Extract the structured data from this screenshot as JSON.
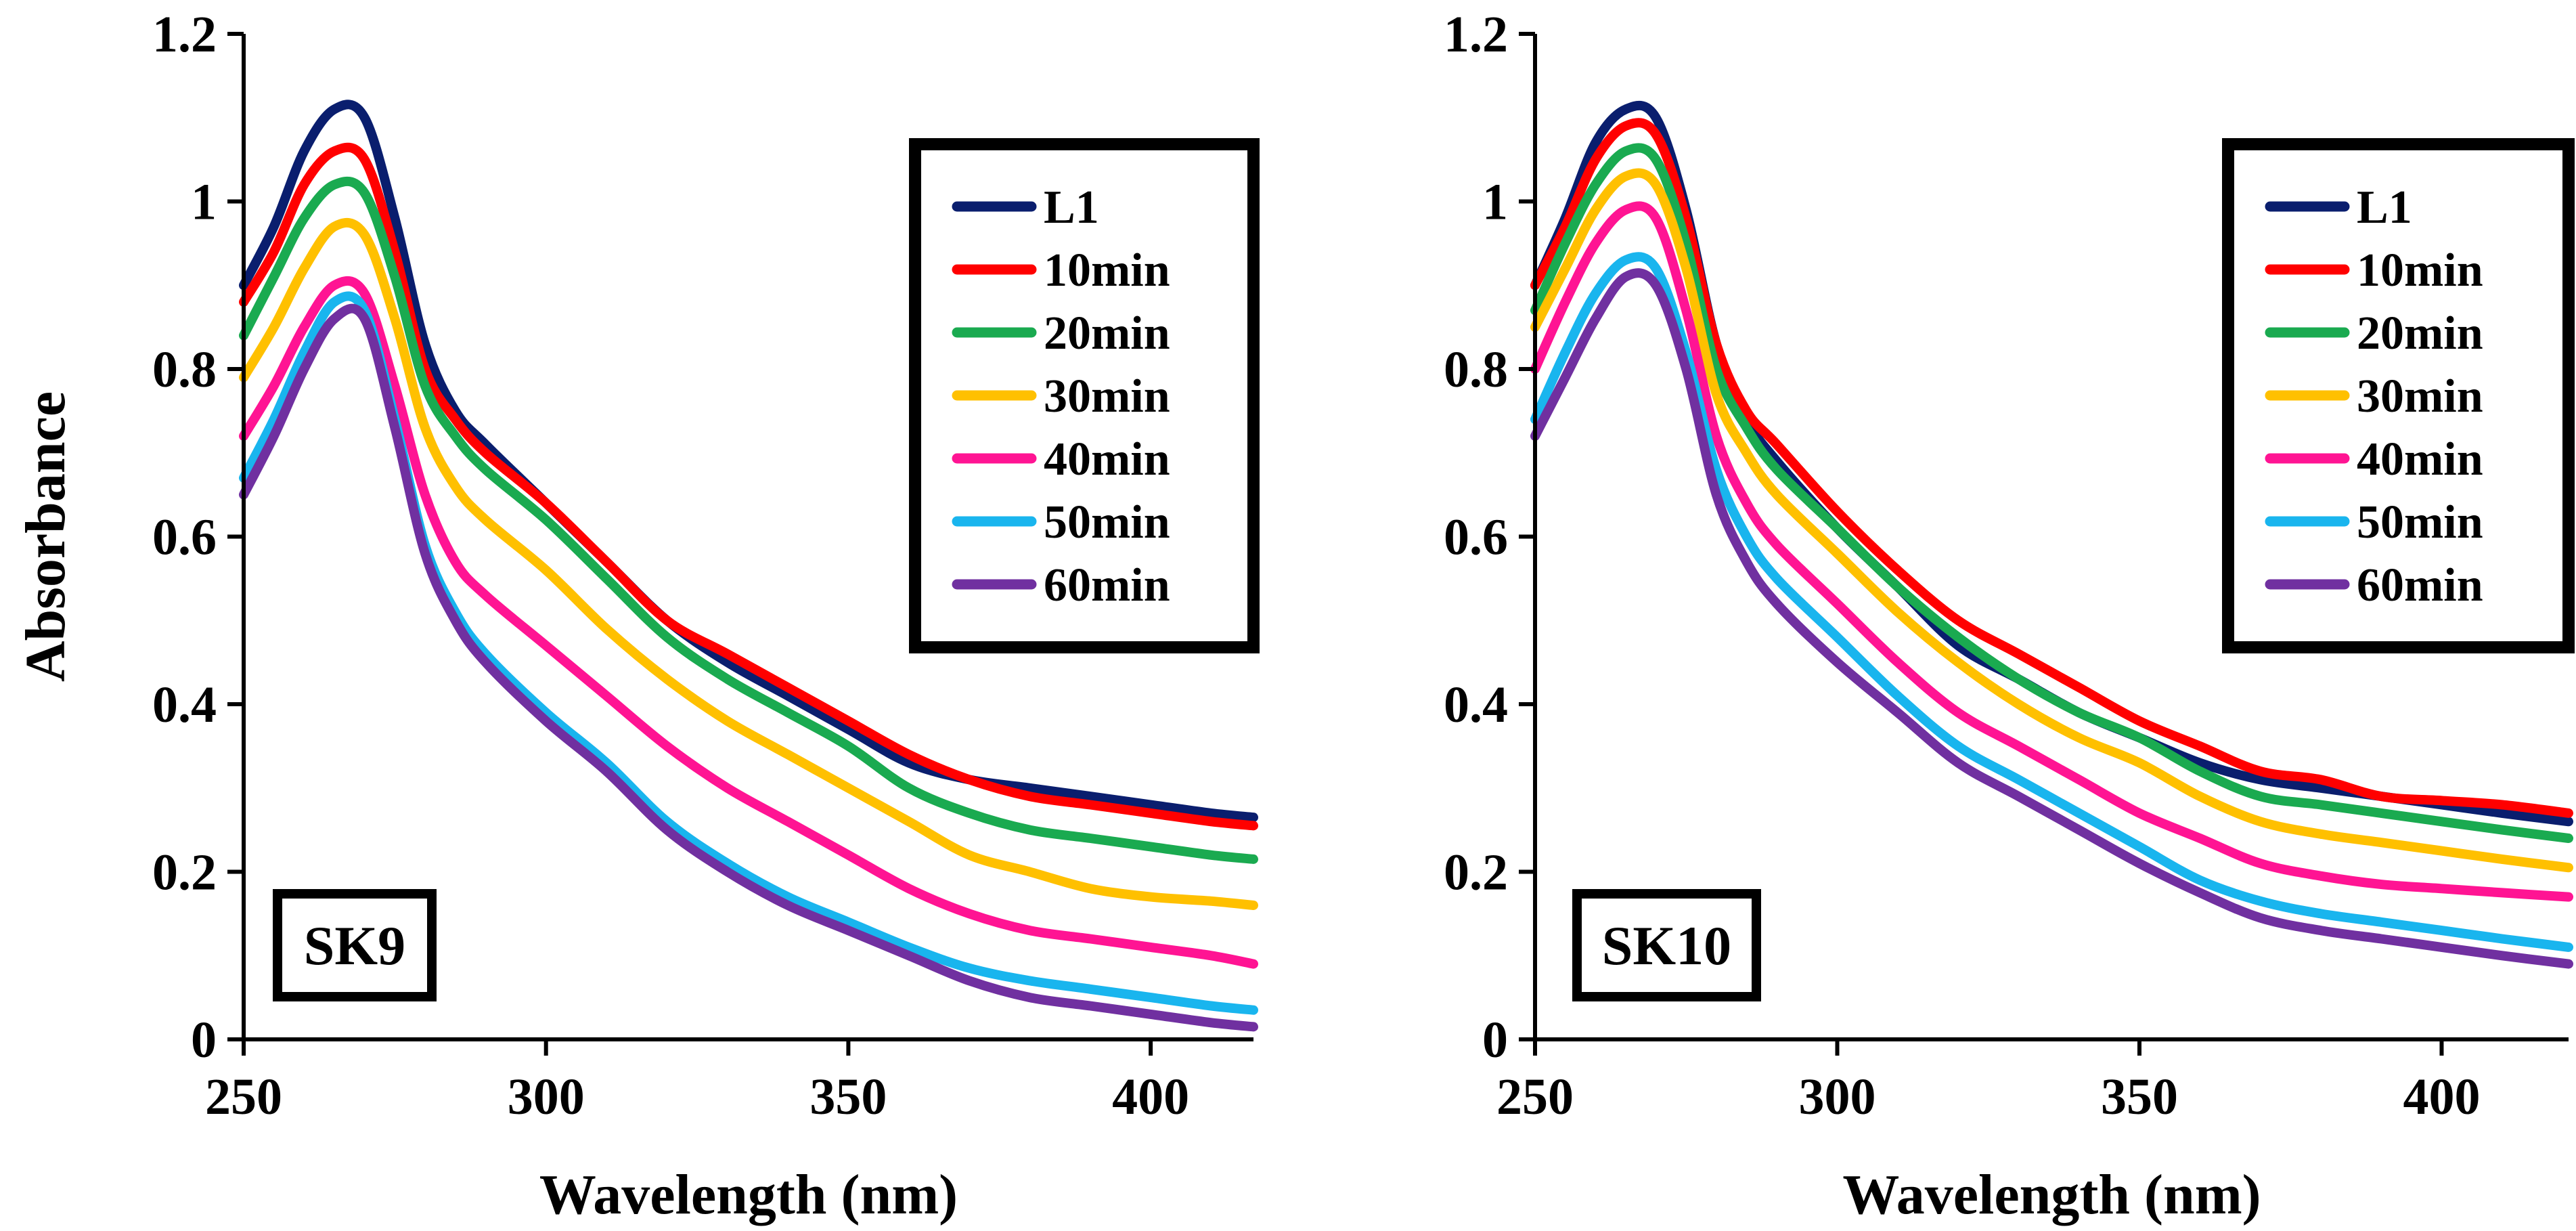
{
  "chart_data": [
    {
      "type": "line",
      "panel_label": "SK9",
      "xlabel": "Wavelength (nm)",
      "ylabel": "Absorbance",
      "xlim": [
        250,
        417
      ],
      "ylim": [
        0,
        1.2
      ],
      "x_ticks": [
        250,
        300,
        350,
        400
      ],
      "x_tick_labels": [
        "250",
        "300",
        "350",
        "400"
      ],
      "y_ticks": [
        0,
        0.2,
        0.4,
        0.6,
        0.8,
        1.0,
        1.2
      ],
      "y_tick_labels": [
        "0",
        "0.2",
        "0.4",
        "0.6",
        "0.8",
        "1",
        "1.2"
      ],
      "grid": false,
      "legend_position": "top-right",
      "x": [
        250,
        255,
        260,
        265,
        270,
        275,
        280,
        285,
        290,
        300,
        310,
        320,
        330,
        340,
        350,
        360,
        370,
        380,
        390,
        400,
        410,
        417
      ],
      "series": [
        {
          "name": "L1",
          "color": "#0a1e6e",
          "values": [
            0.9,
            0.97,
            1.06,
            1.11,
            1.1,
            0.98,
            0.83,
            0.75,
            0.71,
            0.64,
            0.57,
            0.5,
            0.45,
            0.41,
            0.37,
            0.33,
            0.31,
            0.3,
            0.29,
            0.28,
            0.27,
            0.265
          ]
        },
        {
          "name": "10min",
          "color": "#ff0000",
          "values": [
            0.88,
            0.94,
            1.02,
            1.06,
            1.05,
            0.94,
            0.8,
            0.74,
            0.7,
            0.64,
            0.57,
            0.5,
            0.46,
            0.42,
            0.38,
            0.34,
            0.31,
            0.29,
            0.28,
            0.27,
            0.26,
            0.255
          ]
        },
        {
          "name": "20min",
          "color": "#1aaa50",
          "values": [
            0.84,
            0.91,
            0.98,
            1.02,
            1.01,
            0.91,
            0.78,
            0.72,
            0.68,
            0.62,
            0.55,
            0.48,
            0.43,
            0.39,
            0.35,
            0.3,
            0.27,
            0.25,
            0.24,
            0.23,
            0.22,
            0.215
          ]
        },
        {
          "name": "30min",
          "color": "#ffc000",
          "values": [
            0.79,
            0.85,
            0.92,
            0.97,
            0.96,
            0.86,
            0.73,
            0.66,
            0.62,
            0.56,
            0.49,
            0.43,
            0.38,
            0.34,
            0.3,
            0.26,
            0.22,
            0.2,
            0.18,
            0.17,
            0.165,
            0.16
          ]
        },
        {
          "name": "40min",
          "color": "#ff1493",
          "values": [
            0.72,
            0.78,
            0.85,
            0.9,
            0.89,
            0.78,
            0.65,
            0.57,
            0.53,
            0.47,
            0.41,
            0.35,
            0.3,
            0.26,
            0.22,
            0.18,
            0.15,
            0.13,
            0.12,
            0.11,
            0.1,
            0.09
          ]
        },
        {
          "name": "50min",
          "color": "#19b5ee",
          "values": [
            0.67,
            0.74,
            0.82,
            0.88,
            0.87,
            0.74,
            0.59,
            0.51,
            0.46,
            0.39,
            0.33,
            0.26,
            0.21,
            0.17,
            0.14,
            0.11,
            0.085,
            0.07,
            0.06,
            0.05,
            0.04,
            0.035
          ]
        },
        {
          "name": "60min",
          "color": "#7030a0",
          "values": [
            0.65,
            0.72,
            0.8,
            0.86,
            0.86,
            0.73,
            0.58,
            0.5,
            0.45,
            0.38,
            0.32,
            0.25,
            0.2,
            0.16,
            0.13,
            0.1,
            0.07,
            0.05,
            0.04,
            0.03,
            0.02,
            0.015
          ]
        }
      ]
    },
    {
      "type": "line",
      "panel_label": "SK10",
      "xlabel": "Wavelength (nm)",
      "ylabel": "",
      "xlim": [
        250,
        421
      ],
      "ylim": [
        0,
        1.2
      ],
      "x_ticks": [
        250,
        300,
        350,
        400
      ],
      "x_tick_labels": [
        "250",
        "300",
        "350",
        "400"
      ],
      "y_ticks": [
        0,
        0.2,
        0.4,
        0.6,
        0.8,
        1.0,
        1.2
      ],
      "y_tick_labels": [
        "0",
        "0.2",
        "0.4",
        "0.6",
        "0.8",
        "1",
        "1.2"
      ],
      "grid": false,
      "legend_position": "top-right",
      "x": [
        250,
        255,
        260,
        265,
        270,
        275,
        280,
        285,
        290,
        300,
        310,
        320,
        330,
        340,
        350,
        360,
        370,
        380,
        390,
        400,
        410,
        421
      ],
      "series": [
        {
          "name": "L1",
          "color": "#0a1e6e",
          "values": [
            0.9,
            0.98,
            1.07,
            1.11,
            1.1,
            0.99,
            0.83,
            0.74,
            0.69,
            0.61,
            0.54,
            0.47,
            0.43,
            0.39,
            0.36,
            0.33,
            0.31,
            0.3,
            0.29,
            0.28,
            0.27,
            0.26
          ]
        },
        {
          "name": "10min",
          "color": "#ff0000",
          "values": [
            0.9,
            0.97,
            1.05,
            1.09,
            1.08,
            0.98,
            0.83,
            0.75,
            0.71,
            0.63,
            0.56,
            0.5,
            0.46,
            0.42,
            0.38,
            0.35,
            0.32,
            0.31,
            0.29,
            0.285,
            0.28,
            0.27
          ]
        },
        {
          "name": "20min",
          "color": "#1aaa50",
          "values": [
            0.87,
            0.95,
            1.02,
            1.06,
            1.05,
            0.95,
            0.8,
            0.73,
            0.68,
            0.61,
            0.54,
            0.48,
            0.43,
            0.39,
            0.36,
            0.32,
            0.29,
            0.28,
            0.27,
            0.26,
            0.25,
            0.24
          ]
        },
        {
          "name": "30min",
          "color": "#ffc000",
          "values": [
            0.85,
            0.92,
            0.99,
            1.03,
            1.02,
            0.92,
            0.77,
            0.7,
            0.65,
            0.58,
            0.51,
            0.45,
            0.4,
            0.36,
            0.33,
            0.29,
            0.26,
            0.245,
            0.235,
            0.225,
            0.215,
            0.205
          ]
        },
        {
          "name": "40min",
          "color": "#ff1493",
          "values": [
            0.8,
            0.88,
            0.95,
            0.99,
            0.98,
            0.87,
            0.72,
            0.64,
            0.59,
            0.52,
            0.45,
            0.39,
            0.35,
            0.31,
            0.27,
            0.24,
            0.21,
            0.195,
            0.185,
            0.18,
            0.175,
            0.17
          ]
        },
        {
          "name": "50min",
          "color": "#19b5ee",
          "values": [
            0.74,
            0.82,
            0.89,
            0.93,
            0.92,
            0.82,
            0.68,
            0.6,
            0.55,
            0.48,
            0.41,
            0.35,
            0.31,
            0.27,
            0.23,
            0.19,
            0.165,
            0.15,
            0.14,
            0.13,
            0.12,
            0.11
          ]
        },
        {
          "name": "60min",
          "color": "#7030a0",
          "values": [
            0.72,
            0.79,
            0.86,
            0.91,
            0.9,
            0.8,
            0.65,
            0.57,
            0.52,
            0.45,
            0.39,
            0.33,
            0.29,
            0.25,
            0.21,
            0.175,
            0.145,
            0.13,
            0.12,
            0.11,
            0.1,
            0.09
          ]
        }
      ]
    }
  ]
}
